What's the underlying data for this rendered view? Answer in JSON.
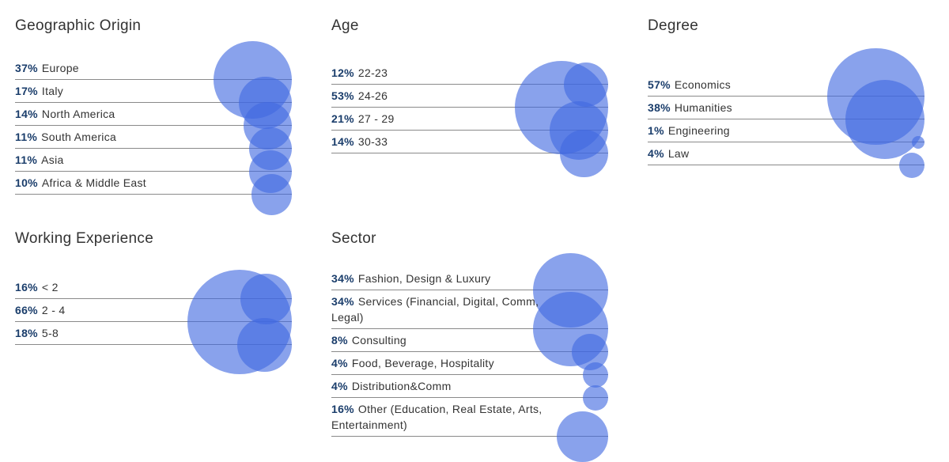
{
  "chart_data": [
    {
      "type": "bubble-list",
      "title": "Geographic Origin",
      "items": [
        {
          "percent": "37%",
          "label": "Europe",
          "value": 37
        },
        {
          "percent": "17%",
          "label": "Italy",
          "value": 17
        },
        {
          "percent": "14%",
          "label": "North America",
          "value": 14
        },
        {
          "percent": "11%",
          "label": "South America",
          "value": 11
        },
        {
          "percent": "11%",
          "label": "Asia",
          "value": 11
        },
        {
          "percent": "10%",
          "label": "Africa & Middle East",
          "value": 10
        }
      ]
    },
    {
      "type": "bubble-list",
      "title": "Age",
      "items": [
        {
          "percent": "12%",
          "label": "22-23",
          "value": 12
        },
        {
          "percent": "53%",
          "label": "24-26",
          "value": 53
        },
        {
          "percent": "21%",
          "label": "27 - 29",
          "value": 21
        },
        {
          "percent": "14%",
          "label": "30-33",
          "value": 14
        }
      ]
    },
    {
      "type": "bubble-list",
      "title": "Degree",
      "items": [
        {
          "percent": "57%",
          "label": "Economics",
          "value": 57
        },
        {
          "percent": "38%",
          "label": "Humanities",
          "value": 38
        },
        {
          "percent": "1%",
          "label": "Engineering",
          "value": 1
        },
        {
          "percent": "4%",
          "label": "Law",
          "value": 4
        }
      ]
    },
    {
      "type": "bubble-list",
      "title": "Working Experience",
      "items": [
        {
          "percent": "16%",
          "label": "< 2",
          "value": 16
        },
        {
          "percent": "66%",
          "label": "2 - 4",
          "value": 66
        },
        {
          "percent": "18%",
          "label": "5-8",
          "value": 18
        }
      ]
    },
    {
      "type": "bubble-list",
      "title": "Sector",
      "items": [
        {
          "percent": "34%",
          "label": "Fashion, Design & Luxury",
          "value": 34
        },
        {
          "percent": "34%",
          "label": "Services (Financial, Digital, Comm, Legal)",
          "value": 34
        },
        {
          "percent": "8%",
          "label": "Consulting",
          "value": 8
        },
        {
          "percent": "4%",
          "label": "Food, Beverage, Hospitality",
          "value": 4
        },
        {
          "percent": "4%",
          "label": "Distribution&Comm",
          "value": 4
        },
        {
          "percent": "16%",
          "label": "Other (Education, Real Estate, Arts, Entertainment)",
          "value": 16
        }
      ]
    }
  ],
  "colors": {
    "bubble": "#4169e1",
    "percent": "#1a3d6b",
    "text": "#333333",
    "rule": "#8a8a8a"
  }
}
